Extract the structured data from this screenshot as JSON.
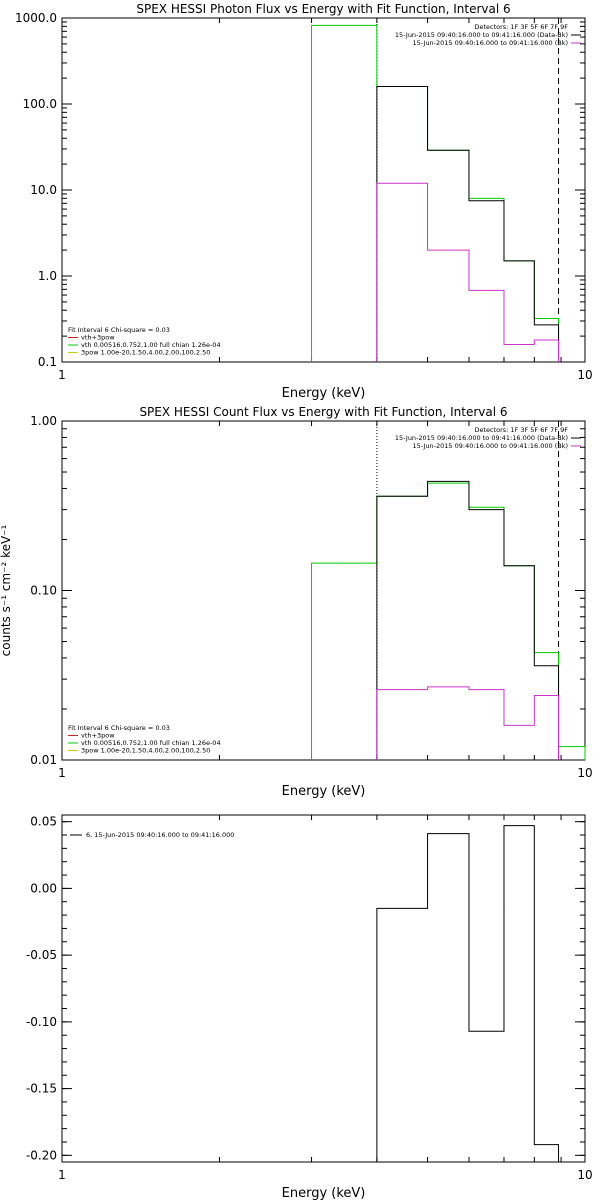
{
  "chart_data": [
    {
      "type": "line",
      "title": "SPEX HESSI Photon Flux vs Energy with Fit Function, Interval 6",
      "xlabel": "Energy (keV)",
      "ylabel": "",
      "x_scale": "log",
      "y_scale": "log",
      "xlim": [
        1,
        10
      ],
      "ylim": [
        0.1,
        1000
      ],
      "x_ticks": [
        {
          "v": 1,
          "label": "1"
        },
        {
          "v": 10,
          "label": "10"
        }
      ],
      "y_ticks": [
        {
          "v": 0.1,
          "label": "0.1"
        },
        {
          "v": 1,
          "label": "1.0"
        },
        {
          "v": 10,
          "label": "10.0"
        },
        {
          "v": 100,
          "label": "100.0"
        },
        {
          "v": 1000,
          "label": "1000.0"
        }
      ],
      "legend_top": [
        "Detectors: 1F 3F 5F 6F 7F 9F",
        "15-Jun-2015 09:40:16.000 to 09:41:16.000 (Data-Bk)",
        "15-Jun-2015 09:40:16.000 to 09:41:16.000 (Bk)"
      ],
      "legend_top_colors": [
        "",
        "#000000",
        "#cc33cc"
      ],
      "legend_bottom": [
        "Fit Interval 6   Chi-square = 0.03",
        "vth+3pow",
        "vth 0.00516,0.752,1.00  full chian 1.26e-04",
        "3pow 1.00e-20,1.50,4.00,2.00,100,2.50"
      ],
      "legend_bottom_colors": [
        "",
        "#cc2222",
        "#00cc00",
        "#cccc00"
      ],
      "vlines": [
        {
          "x": 4.0,
          "style": "dotted"
        },
        {
          "x": 8.9,
          "style": "dashed"
        }
      ],
      "series": [
        {
          "color": "#00cc00",
          "steps": [
            [
              3.0,
              4.0,
              820
            ],
            [
              4.0,
              5.0,
              160
            ],
            [
              5.0,
              6.0,
              29
            ],
            [
              6.0,
              7.0,
              8.0
            ],
            [
              7.0,
              8.0,
              1.5
            ],
            [
              8.0,
              8.9,
              0.32
            ]
          ]
        },
        {
          "color": "#000000",
          "steps": [
            [
              4.0,
              5.0,
              160
            ],
            [
              5.0,
              6.0,
              29
            ],
            [
              6.0,
              7.0,
              7.5
            ],
            [
              7.0,
              8.0,
              1.5
            ],
            [
              8.0,
              8.9,
              0.27
            ]
          ]
        },
        {
          "color": "#cc33cc",
          "steps": [
            [
              4.0,
              5.0,
              12
            ],
            [
              5.0,
              6.0,
              2.0
            ],
            [
              6.0,
              7.0,
              0.68
            ],
            [
              7.0,
              8.0,
              0.16
            ],
            [
              8.0,
              8.9,
              0.18
            ]
          ]
        }
      ]
    },
    {
      "type": "line",
      "title": "SPEX HESSI Count Flux vs Energy with Fit Function, Interval 6",
      "xlabel": "Energy (keV)",
      "ylabel": "counts s⁻¹ cm⁻² keV⁻¹",
      "x_scale": "log",
      "y_scale": "log",
      "xlim": [
        1,
        10
      ],
      "ylim": [
        0.01,
        1
      ],
      "x_ticks": [
        {
          "v": 1,
          "label": "1"
        },
        {
          "v": 10,
          "label": "10"
        }
      ],
      "y_ticks": [
        {
          "v": 0.01,
          "label": "0.01"
        },
        {
          "v": 0.1,
          "label": "0.10"
        },
        {
          "v": 1,
          "label": "1.00"
        }
      ],
      "legend_top": [
        "Detectors: 1F 3F 5F 6F 7F 9F",
        "15-Jun-2015 09:40:16.000 to 09:41:16.000 (Data-Bk)",
        "15-Jun-2015 09:40:16.000 to 09:41:16.000 (Bk)"
      ],
      "legend_top_colors": [
        "",
        "#000000",
        "#cc33cc"
      ],
      "legend_bottom": [
        "Fit Interval 6   Chi-square = 0.03",
        "vth+3pow",
        "vth 0.00516,0.752,1.00  full chian 1.26e-04",
        "3pow 1.00e-20,1.50,4.00,2.00,100,2.50"
      ],
      "legend_bottom_colors": [
        "",
        "#cc2222",
        "#00cc00",
        "#cccc00"
      ],
      "vlines": [
        {
          "x": 4.0,
          "style": "dotted"
        },
        {
          "x": 8.9,
          "style": "dashed"
        }
      ],
      "series": [
        {
          "color": "#00cc00",
          "steps": [
            [
              3.0,
              4.0,
              0.145
            ],
            [
              4.0,
              5.0,
              0.36
            ],
            [
              5.0,
              6.0,
              0.43
            ],
            [
              6.0,
              7.0,
              0.31
            ],
            [
              7.0,
              8.0,
              0.14
            ],
            [
              8.0,
              8.9,
              0.043
            ],
            [
              8.9,
              10.0,
              0.012
            ]
          ]
        },
        {
          "color": "#000000",
          "steps": [
            [
              4.0,
              5.0,
              0.36
            ],
            [
              5.0,
              6.0,
              0.44
            ],
            [
              6.0,
              7.0,
              0.3
            ],
            [
              7.0,
              8.0,
              0.14
            ],
            [
              8.0,
              8.9,
              0.036
            ]
          ]
        },
        {
          "color": "#cc33cc",
          "steps": [
            [
              4.0,
              5.0,
              0.026
            ],
            [
              5.0,
              6.0,
              0.027
            ],
            [
              6.0,
              7.0,
              0.026
            ],
            [
              7.0,
              8.0,
              0.016
            ],
            [
              8.0,
              8.9,
              0.024
            ]
          ]
        }
      ]
    },
    {
      "type": "line",
      "title": "",
      "xlabel": "Energy (keV)",
      "ylabel": "",
      "x_scale": "log",
      "y_scale": "linear",
      "xlim": [
        1,
        10
      ],
      "ylim": [
        -0.205,
        0.055
      ],
      "x_ticks": [
        {
          "v": 1,
          "label": "1"
        },
        {
          "v": 10,
          "label": "10"
        }
      ],
      "y_ticks": [
        {
          "v": 0.05,
          "label": "0.05"
        },
        {
          "v": 0.0,
          "label": "0.00"
        },
        {
          "v": -0.05,
          "label": "-0.05"
        },
        {
          "v": -0.1,
          "label": "-0.10"
        },
        {
          "v": -0.15,
          "label": "-0.15"
        },
        {
          "v": -0.2,
          "label": "-0.20"
        }
      ],
      "legend_top": [
        "6, 15-Jun-2015 09:40:16.000 to 09:41:16.000"
      ],
      "legend_top_colors": [
        "#000000"
      ],
      "legend_bottom": [],
      "legend_bottom_colors": [],
      "vlines": [],
      "series": [
        {
          "color": "#000000",
          "steps": [
            [
              4.0,
              5.0,
              -0.015
            ],
            [
              5.0,
              6.0,
              0.041
            ],
            [
              6.0,
              7.0,
              -0.107
            ],
            [
              7.0,
              8.0,
              0.047
            ],
            [
              8.0,
              8.9,
              -0.192
            ]
          ]
        }
      ]
    }
  ]
}
